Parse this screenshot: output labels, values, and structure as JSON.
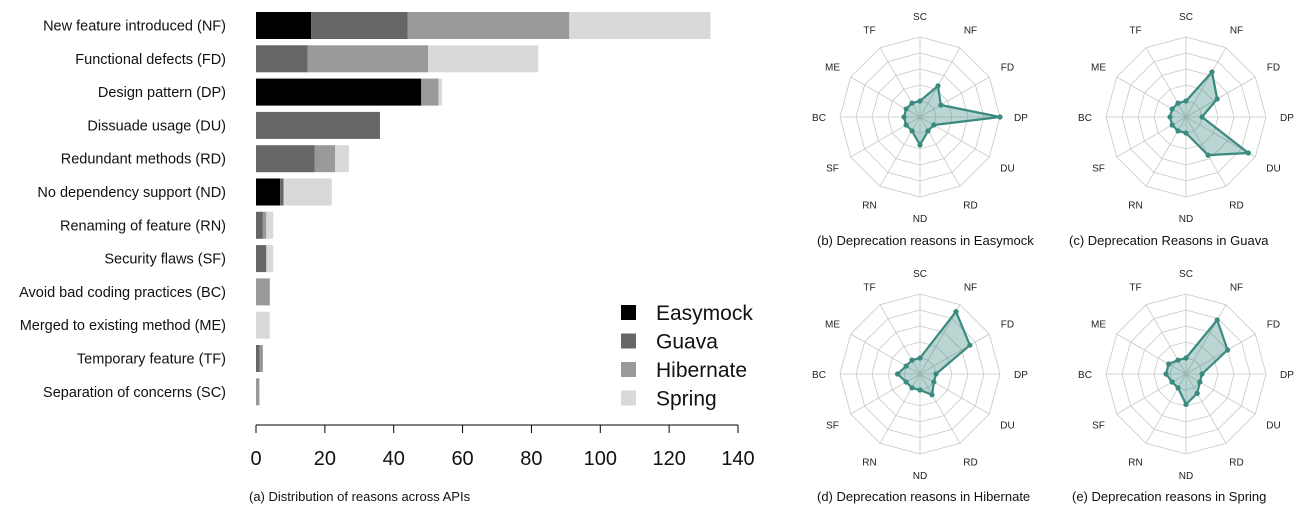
{
  "chart_data": [
    {
      "type": "bar",
      "orientation": "horizontal",
      "stacked": true,
      "caption": "(a) Distribution of reasons across APIs",
      "categories": [
        "New feature introduced (NF)",
        "Functional defects (FD)",
        "Design pattern (DP)",
        "Dissuade usage (DU)",
        "Redundant methods (RD)",
        "No dependency support (ND)",
        "Renaming of feature (RN)",
        "Security flaws (SF)",
        "Avoid bad coding practices (BC)",
        "Merged to existing method (ME)",
        "Temporary feature (TF)",
        "Separation of concerns (SC)"
      ],
      "series": [
        {
          "name": "Easymock",
          "color": "#000000",
          "values": [
            16,
            0,
            48,
            0,
            0,
            7,
            0,
            0,
            0,
            0,
            0,
            0
          ]
        },
        {
          "name": "Guava",
          "color": "#666666",
          "values": [
            28,
            15,
            0,
            36,
            17,
            1,
            2,
            3,
            0,
            0,
            1,
            0
          ]
        },
        {
          "name": "Hibernate",
          "color": "#999999",
          "values": [
            47,
            35,
            5,
            0,
            6,
            0,
            1,
            0,
            4,
            0,
            1,
            1
          ]
        },
        {
          "name": "Spring",
          "color": "#d9d9d9",
          "values": [
            41,
            32,
            1,
            0,
            4,
            14,
            2,
            2,
            0,
            4,
            0,
            0
          ]
        }
      ],
      "xlim": [
        0,
        140
      ],
      "xticks": [
        "0",
        "20",
        "40",
        "60",
        "80",
        "100",
        "120",
        "140"
      ],
      "legend_position": "bottom-right",
      "grid": false
    },
    {
      "type": "radar",
      "caption": "(b) Deprecation reasons in Easymock",
      "axes": [
        "SC",
        "NF",
        "FD",
        "DP",
        "DU",
        "RD",
        "ND",
        "RN",
        "SF",
        "BC",
        "ME",
        "TF"
      ],
      "values": [
        0.2,
        0.45,
        0.3,
        1.0,
        0.2,
        0.2,
        0.35,
        0.2,
        0.2,
        0.2,
        0.2,
        0.2
      ],
      "rmax": 1.0,
      "color": "#3a8a80"
    },
    {
      "type": "radar",
      "caption": "(c) Deprecation Reasons in Guava",
      "axes": [
        "SC",
        "NF",
        "FD",
        "DP",
        "DU",
        "RD",
        "ND",
        "RN",
        "SF",
        "BC",
        "ME",
        "TF"
      ],
      "values": [
        0.2,
        0.65,
        0.45,
        0.2,
        0.9,
        0.55,
        0.2,
        0.2,
        0.2,
        0.2,
        0.2,
        0.2
      ],
      "rmax": 1.0,
      "color": "#3a8a80"
    },
    {
      "type": "radar",
      "caption": "(d) Deprecation reasons in Hibernate",
      "axes": [
        "SC",
        "NF",
        "FD",
        "DP",
        "DU",
        "RD",
        "ND",
        "RN",
        "SF",
        "BC",
        "ME",
        "TF"
      ],
      "values": [
        0.2,
        0.9,
        0.72,
        0.2,
        0.2,
        0.3,
        0.2,
        0.2,
        0.2,
        0.28,
        0.2,
        0.2
      ],
      "rmax": 1.0,
      "color": "#3a8a80"
    },
    {
      "type": "radar",
      "caption": "(e) Deprecation reasons in Spring",
      "axes": [
        "SC",
        "NF",
        "FD",
        "DP",
        "DU",
        "RD",
        "ND",
        "RN",
        "SF",
        "BC",
        "ME",
        "TF"
      ],
      "values": [
        0.2,
        0.78,
        0.6,
        0.2,
        0.2,
        0.28,
        0.38,
        0.2,
        0.2,
        0.25,
        0.25,
        0.2
      ],
      "rmax": 1.0,
      "color": "#3a8a80"
    }
  ]
}
